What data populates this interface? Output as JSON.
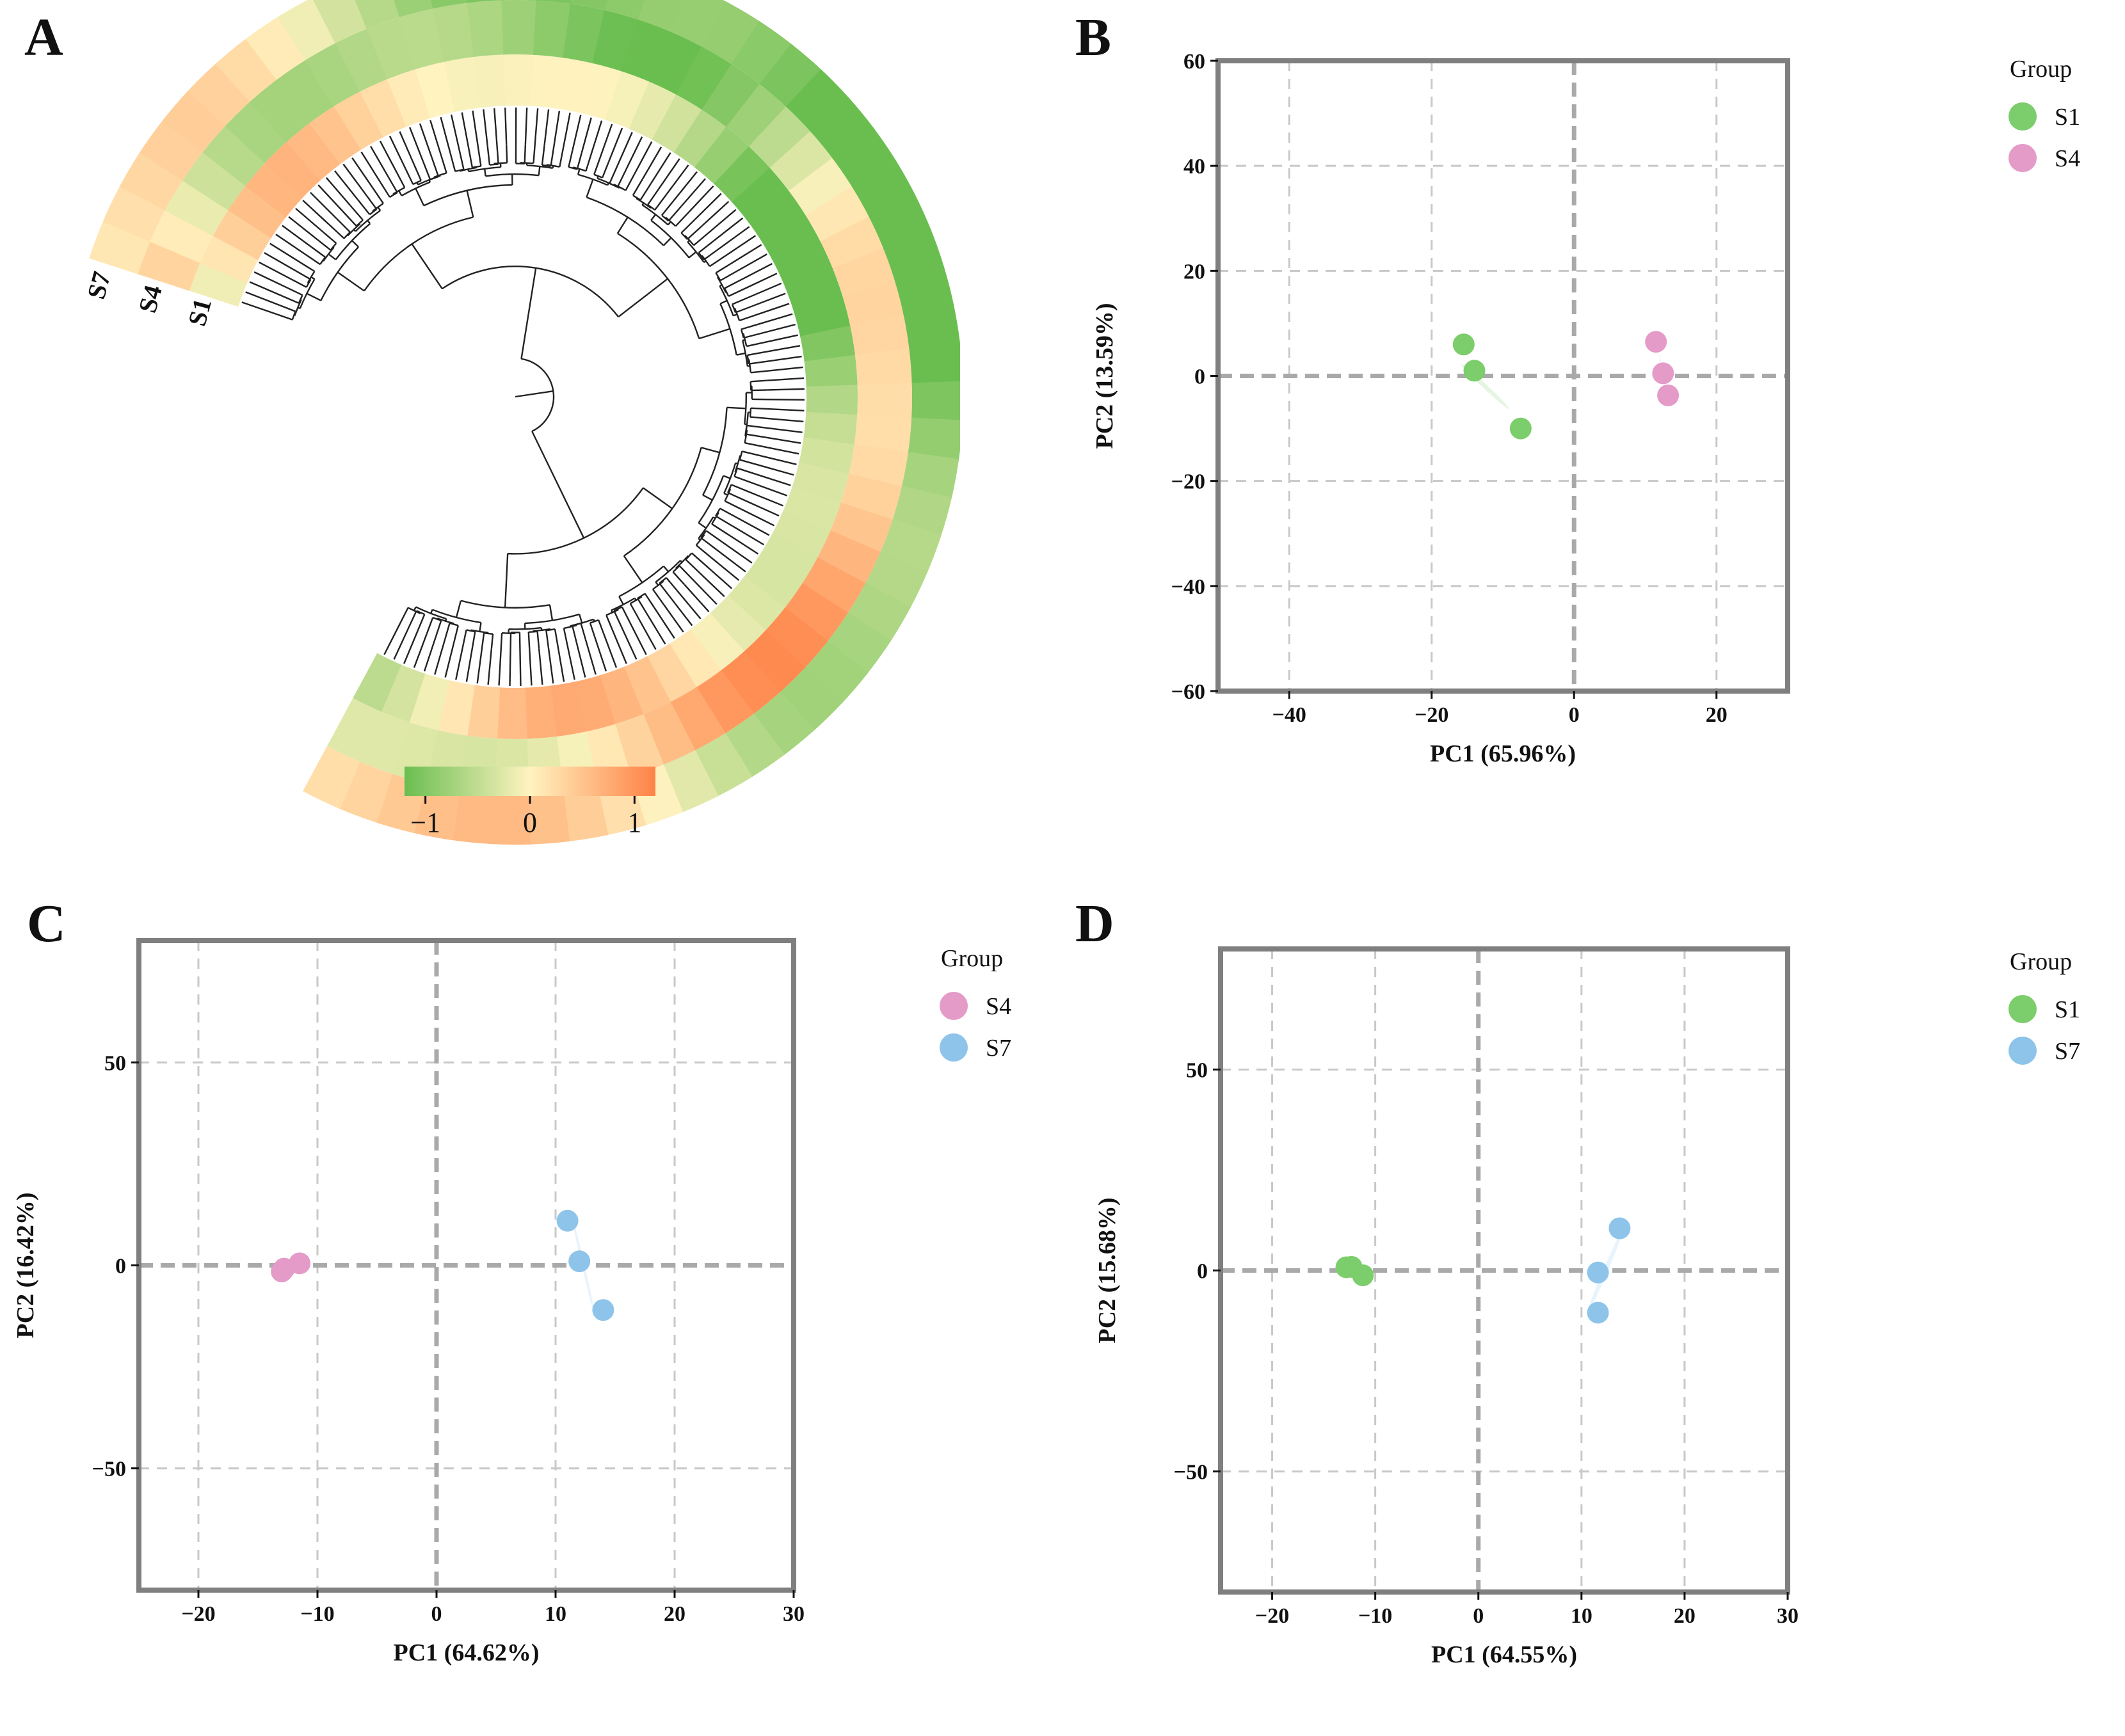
{
  "panels": {
    "A": {
      "label": "A"
    },
    "B": {
      "label": "B"
    },
    "C": {
      "label": "C"
    },
    "D": {
      "label": "D"
    }
  },
  "colors": {
    "S1": "#7ccd6b",
    "S4": "#e49bc8",
    "S7": "#8ec4ea",
    "heat_low": "#6abe50",
    "heat_mid": "#fff3c0",
    "heat_high": "#ff8247",
    "frame": "#7f7f7f",
    "grid": "#c8c8c8"
  },
  "chart_data": [
    {
      "id": "A",
      "type": "heatmap",
      "subtype": "circular-dendrogram-heatmap",
      "rings": [
        "S1",
        "S4",
        "S7"
      ],
      "ring_labels": [
        "S1",
        "S4",
        "S7"
      ],
      "colorbar": {
        "ticks": [
          -1,
          0,
          1
        ],
        "tick_labels": [
          "−1",
          "0",
          "1"
        ],
        "range": [
          -1.2,
          1.2
        ]
      }
    },
    {
      "id": "B",
      "type": "scatter",
      "xlabel": "PC1 (65.96%)",
      "ylabel": "PC2 (13.59%)",
      "xlim": [
        -50,
        30
      ],
      "ylim": [
        -60,
        60
      ],
      "xticks": [
        -40,
        -20,
        0,
        20
      ],
      "yticks": [
        -60,
        -40,
        -20,
        0,
        20,
        40,
        60
      ],
      "tick_labels_x": [
        "−40",
        "−20",
        "0",
        "20"
      ],
      "tick_labels_y": [
        "−60",
        "−40",
        "−20",
        "0",
        "20",
        "40",
        "60"
      ],
      "legend_title": "Group",
      "series": [
        {
          "name": "S1",
          "points": [
            [
              -15.5,
              6
            ],
            [
              -14,
              1
            ],
            [
              -7.5,
              -10
            ]
          ],
          "ellipse": {
            "center": [
              -12.5,
              -2
            ],
            "semi_major": 51.5,
            "semi_minor": 3.4,
            "angle_deg": -43
          }
        },
        {
          "name": "S4",
          "points": [
            [
              11.5,
              6.5
            ],
            [
              12.5,
              0.5
            ],
            [
              13.2,
              -3.7
            ]
          ],
          "ellipse": {
            "center": [
              12.4,
              1
            ],
            "semi_major": 26,
            "semi_minor": 0.9,
            "angle_deg": -79
          }
        }
      ]
    },
    {
      "id": "C",
      "type": "scatter",
      "xlabel": "PC1 (64.62%)",
      "ylabel": "PC2 (16.42%)",
      "xlim": [
        -25,
        30
      ],
      "ylim": [
        -80,
        80
      ],
      "xticks": [
        -20,
        -10,
        0,
        10,
        20,
        30
      ],
      "yticks": [
        -50,
        0,
        50
      ],
      "tick_labels_x": [
        "−20",
        "−10",
        "0",
        "10",
        "20",
        "30"
      ],
      "tick_labels_y": [
        "−50",
        "0",
        "50"
      ],
      "legend_title": "Group",
      "series": [
        {
          "name": "S4",
          "points": [
            [
              -13,
              -1.5
            ],
            [
              -11.5,
              0.5
            ],
            [
              -12.8,
              -0.8
            ]
          ],
          "ellipse": {
            "center": [
              -12.4,
              -0.7
            ],
            "semi_major": 9.5,
            "semi_minor": 0.9,
            "angle_deg": 13
          }
        },
        {
          "name": "S7",
          "points": [
            [
              11,
              11
            ],
            [
              12,
              1
            ],
            [
              14,
              -11
            ]
          ],
          "ellipse": {
            "center": [
              12.3,
              0.3
            ],
            "semi_major": 77,
            "semi_minor": 2.2,
            "angle_deg": -77
          }
        }
      ]
    },
    {
      "id": "D",
      "type": "scatter",
      "xlabel": "PC1 (64.55%)",
      "ylabel": "PC2 (15.68%)",
      "xlim": [
        -25,
        30
      ],
      "ylim": [
        -80,
        80
      ],
      "xticks": [
        -20,
        -10,
        0,
        10,
        20,
        30
      ],
      "yticks": [
        -50,
        0,
        50
      ],
      "tick_labels_x": [
        "−20",
        "−10",
        "0",
        "10",
        "20",
        "30"
      ],
      "tick_labels_y": [
        "−50",
        "0",
        "50"
      ],
      "legend_title": "Group",
      "series": [
        {
          "name": "S1",
          "points": [
            [
              -12.8,
              0.8
            ],
            [
              -12.3,
              0.9
            ],
            [
              -11.2,
              -1.2
            ]
          ],
          "ellipse": {
            "center": [
              -12.1,
              0.2
            ],
            "semi_major": 10,
            "semi_minor": 1.3,
            "angle_deg": -18
          }
        },
        {
          "name": "S7",
          "points": [
            [
              13.7,
              10.5
            ],
            [
              11.6,
              -0.5
            ],
            [
              11.6,
              -10.5
            ]
          ],
          "ellipse": {
            "center": [
              12.3,
              -0.2
            ],
            "semi_major": 73,
            "semi_minor": 3.5,
            "angle_deg": 67
          }
        }
      ]
    }
  ]
}
